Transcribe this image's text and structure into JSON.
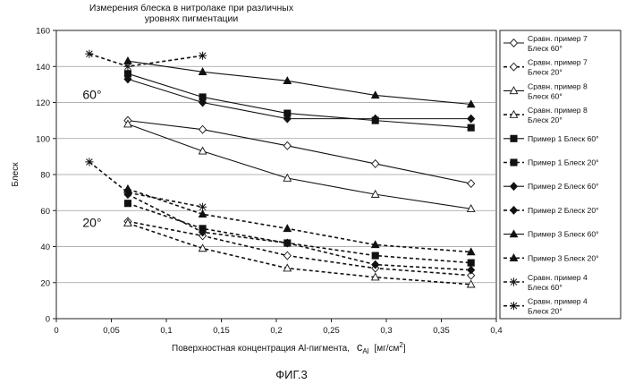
{
  "chart_data": {
    "type": "line",
    "title_lines": [
      "Измерения блеска в нитролаке при различных",
      "уровнях пигментации"
    ],
    "xlabel": "Поверхностная концентрация Al-пигмента,",
    "xlabel_symbol": "c",
    "xlabel_symbol_sub": "Al",
    "xlabel_unit": "[мг/см",
    "xlabel_unit_sup": "2",
    "xlabel_unit_close": "]",
    "ylabel": "Блеск",
    "figure_caption": "ФИГ.3",
    "annotations": [
      {
        "text": "60°",
        "x": 0.0325,
        "y": 122
      },
      {
        "text": "20°",
        "x": 0.0325,
        "y": 51
      }
    ],
    "xlim": [
      0,
      0.4
    ],
    "ylim": [
      0,
      160
    ],
    "xticks": [
      0,
      0.05,
      0.1,
      0.15,
      0.2,
      0.25,
      0.3,
      0.35,
      0.4
    ],
    "xtick_labels": [
      "0",
      "0,05",
      "0,1",
      "0,15",
      "0,2",
      "0,25",
      "0,3",
      "0,35",
      "0,4"
    ],
    "yticks": [
      0,
      20,
      40,
      60,
      80,
      100,
      120,
      140,
      160
    ],
    "ytick_labels": [
      "0",
      "20",
      "40",
      "60",
      "80",
      "100",
      "120",
      "140",
      "160"
    ],
    "grid": "horizontal",
    "legend_position": "right",
    "series": [
      {
        "name": "Сравн. пример 7 Блеск 60°",
        "legend_lines": [
          "Сравн. пример 7",
          "Блеск 60°"
        ],
        "marker": "diamond-open",
        "dashed": false,
        "x": [
          0.065,
          0.133,
          0.21,
          0.29,
          0.377
        ],
        "y": [
          110,
          105,
          96,
          86,
          75
        ]
      },
      {
        "name": "Сравн. пример 7 Блеск 20°",
        "legend_lines": [
          "Сравн. пример 7",
          "Блеск 20°"
        ],
        "marker": "diamond-open",
        "dashed": true,
        "x": [
          0.065,
          0.133,
          0.21,
          0.29,
          0.377
        ],
        "y": [
          54,
          46,
          35,
          28,
          24
        ]
      },
      {
        "name": "Сравн. пример 8 Блеск 60°",
        "legend_lines": [
          "Сравн. пример 8",
          "Блеск 60°"
        ],
        "marker": "triangle-open",
        "dashed": false,
        "x": [
          0.065,
          0.133,
          0.21,
          0.29,
          0.377
        ],
        "y": [
          108,
          93,
          78,
          69,
          61
        ]
      },
      {
        "name": "Сравн. пример 8 Блеск 20°",
        "legend_lines": [
          "Сравн. пример 8",
          "Блеск 20°"
        ],
        "marker": "triangle-open",
        "dashed": true,
        "x": [
          0.065,
          0.133,
          0.21,
          0.29,
          0.377
        ],
        "y": [
          53,
          39,
          28,
          23,
          19
        ]
      },
      {
        "name": "Пример 1 Блеск 60°",
        "legend_lines": [
          "Пример 1 Блеск 60°"
        ],
        "marker": "square",
        "dashed": false,
        "x": [
          0.065,
          0.133,
          0.21,
          0.29,
          0.377
        ],
        "y": [
          136,
          123,
          114,
          110,
          106
        ]
      },
      {
        "name": "Пример 1 Блеск 20°",
        "legend_lines": [
          "Пример 1 Блеск 20°"
        ],
        "marker": "square",
        "dashed": true,
        "x": [
          0.065,
          0.133,
          0.21,
          0.29,
          0.377
        ],
        "y": [
          64,
          50,
          42,
          35,
          31
        ]
      },
      {
        "name": "Пример 2 Блеск 60°",
        "legend_lines": [
          "Пример 2 Блеск 60°"
        ],
        "marker": "diamond",
        "dashed": false,
        "x": [
          0.065,
          0.133,
          0.21,
          0.29,
          0.377
        ],
        "y": [
          133,
          120,
          111,
          111,
          111
        ]
      },
      {
        "name": "Пример 2 Блеск 20°",
        "legend_lines": [
          "Пример 2 Блеск 20°"
        ],
        "marker": "diamond",
        "dashed": true,
        "x": [
          0.065,
          0.133,
          0.21,
          0.29,
          0.377
        ],
        "y": [
          69,
          48,
          42,
          30,
          27
        ]
      },
      {
        "name": "Пример 3 Блеск 60°",
        "legend_lines": [
          "Пример 3 Блеск 60°"
        ],
        "marker": "triangle",
        "dashed": false,
        "x": [
          0.065,
          0.133,
          0.21,
          0.29,
          0.377
        ],
        "y": [
          143,
          137,
          132,
          124,
          119
        ]
      },
      {
        "name": "Пример 3 Блеск 20°",
        "legend_lines": [
          "Пример 3 Блеск 20°"
        ],
        "marker": "triangle",
        "dashed": true,
        "x": [
          0.065,
          0.133,
          0.21,
          0.29,
          0.377
        ],
        "y": [
          72,
          58,
          50,
          41,
          37
        ]
      },
      {
        "name": "Сравн. пример 4 Блеск 60°",
        "legend_lines": [
          "Сравн. пример 4",
          "Блеск 60°"
        ],
        "marker": "star",
        "dashed": true,
        "x": [
          0.03,
          0.065,
          0.133
        ],
        "y": [
          147,
          140,
          146
        ]
      },
      {
        "name": "Сравн. пример 4 Блеск 20°",
        "legend_lines": [
          "Сравн. пример 4",
          "Блеск 20°"
        ],
        "marker": "star",
        "dashed": true,
        "x": [
          0.03,
          0.065,
          0.133
        ],
        "y": [
          87,
          70,
          62
        ]
      }
    ]
  }
}
